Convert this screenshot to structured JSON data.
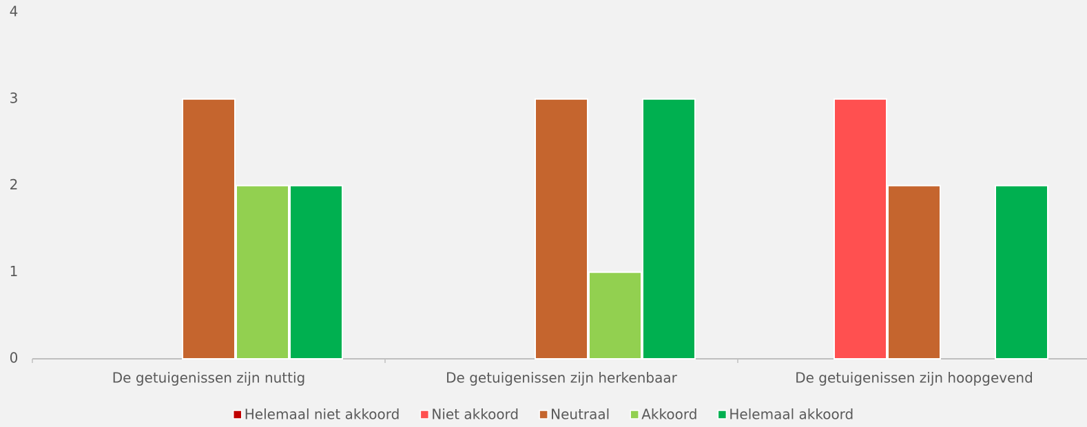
{
  "chart_data": {
    "type": "bar",
    "categories": [
      "De getuigenissen zijn nuttig",
      "De getuigenissen zijn herkenbaar",
      "De getuigenissen zijn hoopgevend"
    ],
    "series": [
      {
        "name": "Helemaal niet akkoord",
        "color": "#c00000",
        "values": [
          0,
          0,
          0
        ]
      },
      {
        "name": "Niet akkoord",
        "color": "#ff5050",
        "values": [
          0,
          0,
          3
        ]
      },
      {
        "name": "Neutraal",
        "color": "#c5652e",
        "values": [
          3,
          3,
          2
        ]
      },
      {
        "name": "Akkoord",
        "color": "#92d050",
        "values": [
          2,
          1,
          0
        ]
      },
      {
        "name": "Helemaal akkoord",
        "color": "#00b050",
        "values": [
          2,
          3,
          2
        ]
      }
    ],
    "ylim": [
      0,
      4
    ],
    "yticks": [
      0,
      1,
      2,
      3,
      4
    ],
    "grid": false,
    "legend": "bottom"
  }
}
